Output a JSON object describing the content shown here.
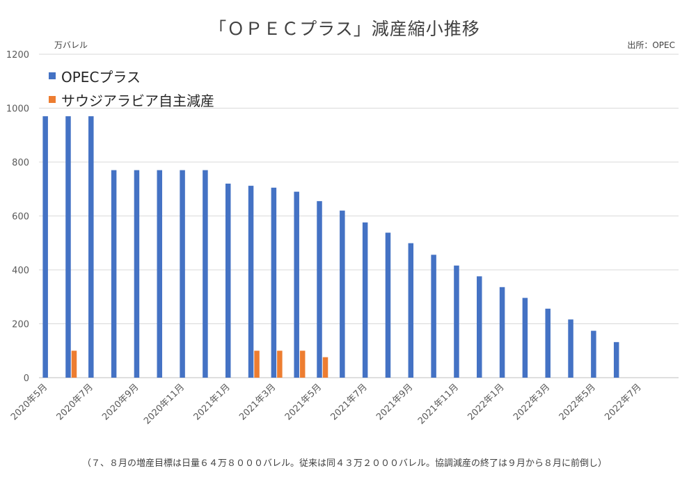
{
  "chart_data": {
    "type": "bar",
    "title": "「ＯＰＥＣプラス」減産縮小推移",
    "source": "出所：OPEC",
    "unit_label": "万バレル",
    "footnote": "（７、８月の増産目標は日量６４万８０００バレル。従来は同４３万２０００バレル。協調減産の終了は９月から８月に前倒し）",
    "ylim": [
      0,
      1200
    ],
    "yticks": [
      0,
      200,
      400,
      600,
      800,
      1000,
      1200
    ],
    "grid": true,
    "legend_position": "top-left",
    "categories": [
      "2020年5月",
      "2020年6月",
      "2020年7月",
      "2020年8月",
      "2020年9月",
      "2020年10月",
      "2020年11月",
      "2020年12月",
      "2021年1月",
      "2021年2月",
      "2021年3月",
      "2021年4月",
      "2021年5月",
      "2021年6月",
      "2021年7月",
      "2021年8月",
      "2021年9月",
      "2021年10月",
      "2021年11月",
      "2021年12月",
      "2022年1月",
      "2022年2月",
      "2022年3月",
      "2022年4月",
      "2022年5月",
      "2022年6月",
      "2022年7月",
      "2022年8月"
    ],
    "xtick_labels": [
      "2020年5月",
      "2020年7月",
      "2020年9月",
      "2020年11月",
      "2021年1月",
      "2021年3月",
      "2021年5月",
      "2021年7月",
      "2021年9月",
      "2021年11月",
      "2022年1月",
      "2022年3月",
      "2022年5月",
      "2022年7月"
    ],
    "series": [
      {
        "name": "OPECプラス",
        "color": "#4472C4",
        "values": [
          970,
          970,
          970,
          770,
          770,
          770,
          770,
          770,
          720,
          712,
          705,
          690,
          655,
          620,
          576,
          538,
          499,
          456,
          416,
          376,
          336,
          296,
          256,
          216,
          174,
          132,
          null,
          null
        ]
      },
      {
        "name": "サウジアラビア自主減産",
        "color": "#ED7D31",
        "values": [
          null,
          100,
          null,
          null,
          null,
          null,
          null,
          null,
          null,
          100,
          100,
          100,
          76,
          null,
          null,
          null,
          null,
          null,
          null,
          null,
          null,
          null,
          null,
          null,
          null,
          null,
          null,
          null
        ]
      }
    ]
  }
}
